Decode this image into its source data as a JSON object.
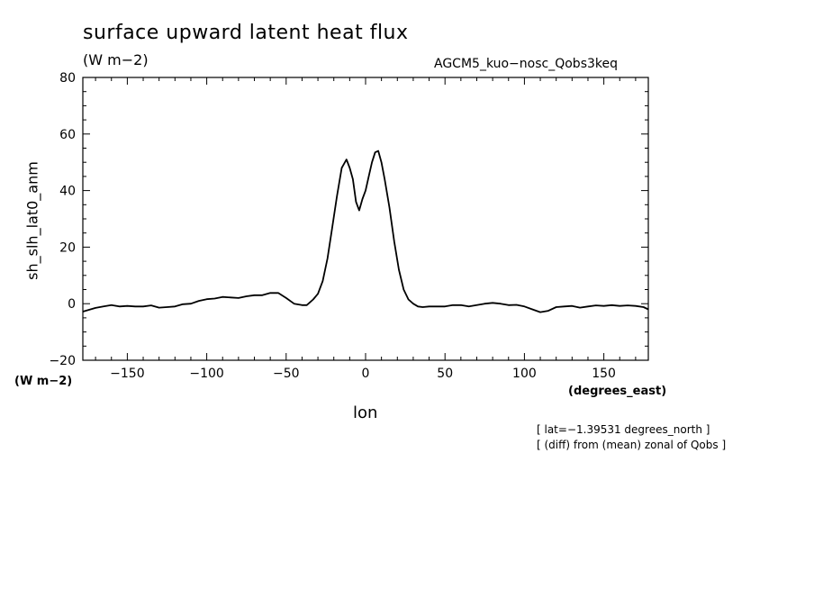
{
  "chart_data": {
    "type": "line",
    "title": "surface upward latent heat flux",
    "units_label": "(W m−2)",
    "run_label": "AGCM5_kuo−nosc_Qobs3keq",
    "ylabel": "sh_slh_lat0_anm",
    "y_units": "(W m−2)",
    "xlabel": "lon",
    "x_units": "(degrees_east)",
    "xlim": [
      -178,
      178
    ],
    "ylim": [
      -20,
      80
    ],
    "x_ticks": [
      -150,
      -100,
      -50,
      0,
      50,
      100,
      150
    ],
    "x_tick_labels": [
      "−150",
      "−100",
      "−50",
      "0",
      "50",
      "100",
      "150"
    ],
    "y_ticks": [
      -20,
      0,
      20,
      40,
      60,
      80
    ],
    "y_tick_labels": [
      "−20",
      "0",
      "20",
      "40",
      "60",
      "80"
    ],
    "annotations": [
      "[ lat=−1.39531 degrees_north ]",
      "[ (diff) from (mean) zonal of Qobs ]"
    ],
    "series": [
      {
        "x": [
          -178,
          -170,
          -165,
          -160,
          -155,
          -150,
          -145,
          -140,
          -135,
          -130,
          -125,
          -120,
          -115,
          -110,
          -105,
          -100,
          -95,
          -90,
          -85,
          -80,
          -75,
          -70,
          -65,
          -60,
          -55,
          -50,
          -45,
          -40,
          -37,
          -33,
          -30,
          -27,
          -24,
          -21,
          -18,
          -15,
          -12,
          -10,
          -8,
          -6,
          -4,
          -2,
          0,
          2,
          4,
          6,
          8,
          10,
          12,
          15,
          18,
          21,
          24,
          27,
          30,
          33,
          36,
          40,
          45,
          50,
          55,
          60,
          65,
          70,
          75,
          80,
          85,
          90,
          95,
          100,
          105,
          110,
          115,
          120,
          125,
          130,
          135,
          140,
          145,
          150,
          155,
          160,
          165,
          170,
          175,
          178
        ],
        "y": [
          -2.8,
          -1.5,
          -1.0,
          -0.5,
          -1.0,
          -0.8,
          -1.0,
          -1.0,
          -0.6,
          -1.4,
          -1.2,
          -1.0,
          -0.2,
          0.0,
          1.0,
          1.6,
          1.8,
          2.4,
          2.2,
          2.0,
          2.6,
          3.0,
          3.0,
          3.8,
          3.8,
          2.0,
          0.0,
          -0.5,
          -0.5,
          1.5,
          3.5,
          8.0,
          16.0,
          27.0,
          38.0,
          48.0,
          51.0,
          48.0,
          44.0,
          36.0,
          33.0,
          37.0,
          40.0,
          45.0,
          50.0,
          53.5,
          54.0,
          50.0,
          44.0,
          34.0,
          22.0,
          12.0,
          5.0,
          1.5,
          0.0,
          -1.0,
          -1.2,
          -1.0,
          -1.0,
          -1.0,
          -0.5,
          -0.5,
          -1.0,
          -0.5,
          0.0,
          0.3,
          0.0,
          -0.5,
          -0.4,
          -1.0,
          -2.0,
          -3.0,
          -2.5,
          -1.2,
          -1.0,
          -0.8,
          -1.4,
          -1.0,
          -0.6,
          -0.8,
          -0.5,
          -0.8,
          -0.6,
          -0.8,
          -1.2,
          -2.0
        ]
      }
    ]
  }
}
